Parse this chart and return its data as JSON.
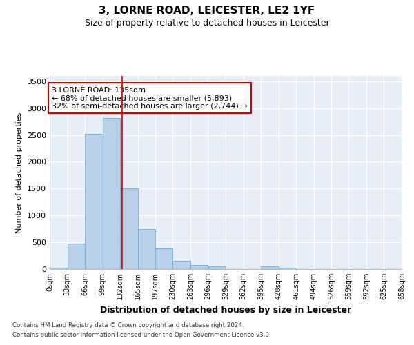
{
  "title": "3, LORNE ROAD, LEICESTER, LE2 1YF",
  "subtitle": "Size of property relative to detached houses in Leicester",
  "xlabel": "Distribution of detached houses by size in Leicester",
  "ylabel": "Number of detached properties",
  "bin_edges": [
    0,
    33,
    66,
    99,
    132,
    165,
    197,
    230,
    263,
    296,
    329,
    362,
    395,
    428,
    461,
    494,
    526,
    559,
    592,
    625,
    658
  ],
  "bin_labels": [
    "0sqm",
    "33sqm",
    "66sqm",
    "99sqm",
    "132sqm",
    "165sqm",
    "197sqm",
    "230sqm",
    "263sqm",
    "296sqm",
    "329sqm",
    "362sqm",
    "395sqm",
    "428sqm",
    "461sqm",
    "494sqm",
    "526sqm",
    "559sqm",
    "592sqm",
    "625sqm",
    "658sqm"
  ],
  "bar_heights": [
    20,
    480,
    2520,
    2820,
    1500,
    750,
    380,
    150,
    75,
    50,
    0,
    0,
    50,
    30,
    0,
    0,
    0,
    0,
    0,
    0
  ],
  "bar_color": "#b8d0ea",
  "bar_edgecolor": "#6aaed6",
  "property_size": 135,
  "vline_color": "#cc0000",
  "annotation_text": "3 LORNE ROAD: 135sqm\n← 68% of detached houses are smaller (5,893)\n32% of semi-detached houses are larger (2,744) →",
  "annotation_box_facecolor": "#ffffff",
  "annotation_box_edgecolor": "#cc0000",
  "ylim": [
    0,
    3600
  ],
  "yticks": [
    0,
    500,
    1000,
    1500,
    2000,
    2500,
    3000,
    3500
  ],
  "axes_facecolor": "#e8eef8",
  "grid_color": "#ffffff",
  "footer_line1": "Contains HM Land Registry data © Crown copyright and database right 2024.",
  "footer_line2": "Contains public sector information licensed under the Open Government Licence v3.0."
}
